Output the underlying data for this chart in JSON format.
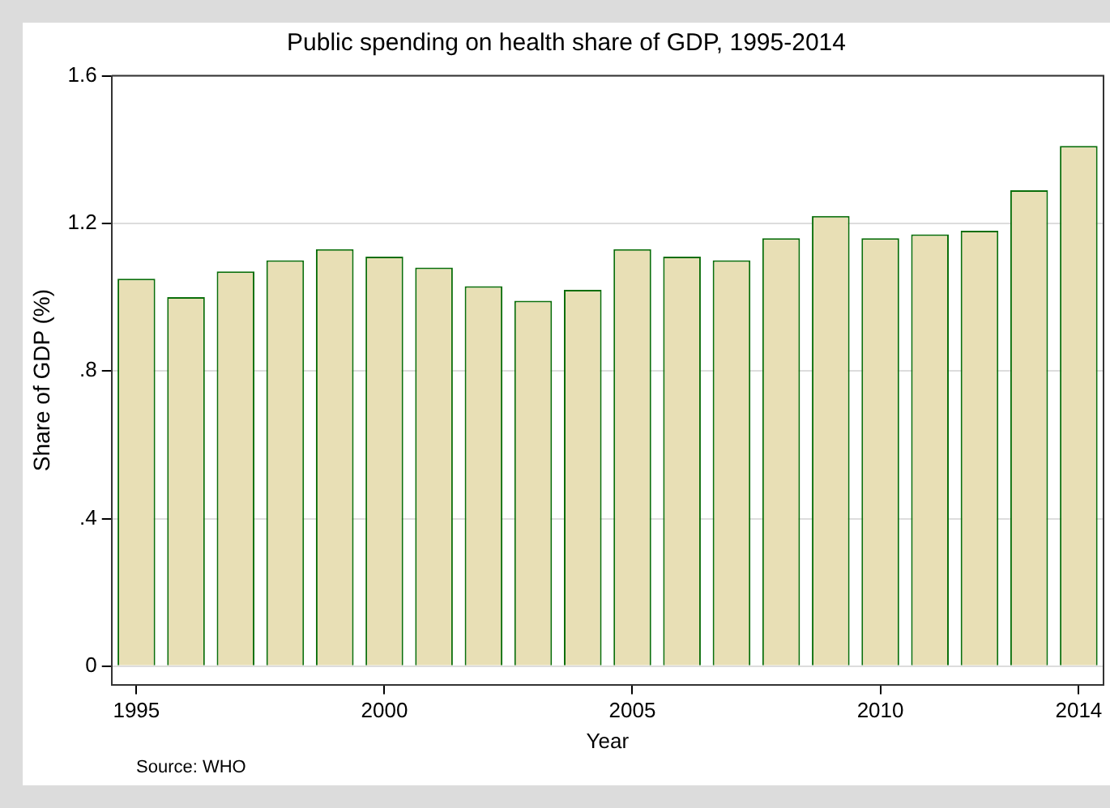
{
  "chart_data": {
    "type": "bar",
    "title": "Public spending on health share of GDP, 1995-2014",
    "xlabel": "Year",
    "ylabel": "Share of GDP (%)",
    "categories": [
      "1995",
      null,
      null,
      null,
      null,
      "2000",
      null,
      null,
      null,
      null,
      "2005",
      null,
      null,
      null,
      null,
      "2010",
      null,
      null,
      null,
      "2014"
    ],
    "series": [
      {
        "color": "#e8dfb5",
        "values": [
          1.05,
          1.0,
          1.07,
          1.1,
          1.13,
          1.11,
          1.08,
          1.03,
          0.99,
          1.02,
          1.13,
          1.11,
          1.1,
          1.16,
          1.22,
          1.16,
          1.17,
          1.18,
          1.29,
          1.41
        ]
      }
    ],
    "ylim": [
      -0.05,
      1.6
    ],
    "yticks": [
      0,
      {
        "value": 0.4,
        "label": ".4"
      },
      {
        "value": 0.8,
        "label": ".8"
      },
      1.2,
      1.6
    ],
    "grid": "y",
    "legend": false,
    "annotations": [
      "Source: WHO"
    ]
  }
}
